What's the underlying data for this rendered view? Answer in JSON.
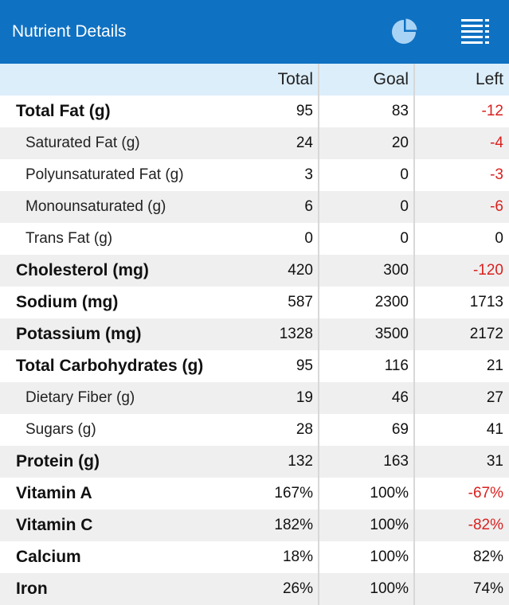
{
  "header": {
    "title": "Nutrient Details",
    "colors": {
      "bar": "#0f71c2",
      "icon": "#a9d3f5"
    },
    "icons": [
      "pie-chart-icon",
      "list-icon"
    ]
  },
  "columns": {
    "total": "Total",
    "goal": "Goal",
    "left": "Left"
  },
  "colors": {
    "negative": "#d9211f",
    "shade": "#efefef",
    "header_row": "#dceefa"
  },
  "rows": [
    {
      "name": "Total Fat (g)",
      "sub": false,
      "total": "95",
      "goal": "83",
      "left": "-12",
      "negative": true
    },
    {
      "name": "Saturated Fat (g)",
      "sub": true,
      "total": "24",
      "goal": "20",
      "left": "-4",
      "negative": true
    },
    {
      "name": "Polyunsaturated Fat (g)",
      "sub": true,
      "total": "3",
      "goal": "0",
      "left": "-3",
      "negative": true
    },
    {
      "name": "Monounsaturated (g)",
      "sub": true,
      "total": "6",
      "goal": "0",
      "left": "-6",
      "negative": true
    },
    {
      "name": "Trans Fat (g)",
      "sub": true,
      "total": "0",
      "goal": "0",
      "left": "0",
      "negative": false
    },
    {
      "name": "Cholesterol (mg)",
      "sub": false,
      "total": "420",
      "goal": "300",
      "left": "-120",
      "negative": true
    },
    {
      "name": "Sodium (mg)",
      "sub": false,
      "total": "587",
      "goal": "2300",
      "left": "1713",
      "negative": false
    },
    {
      "name": "Potassium (mg)",
      "sub": false,
      "total": "1328",
      "goal": "3500",
      "left": "2172",
      "negative": false
    },
    {
      "name": "Total Carbohydrates (g)",
      "sub": false,
      "total": "95",
      "goal": "116",
      "left": "21",
      "negative": false
    },
    {
      "name": "Dietary Fiber (g)",
      "sub": true,
      "total": "19",
      "goal": "46",
      "left": "27",
      "negative": false
    },
    {
      "name": "Sugars (g)",
      "sub": true,
      "total": "28",
      "goal": "69",
      "left": "41",
      "negative": false
    },
    {
      "name": "Protein (g)",
      "sub": false,
      "total": "132",
      "goal": "163",
      "left": "31",
      "negative": false
    },
    {
      "name": "Vitamin A",
      "sub": false,
      "total": "167%",
      "goal": "100%",
      "left": "-67%",
      "negative": true
    },
    {
      "name": "Vitamin C",
      "sub": false,
      "total": "182%",
      "goal": "100%",
      "left": "-82%",
      "negative": true
    },
    {
      "name": "Calcium",
      "sub": false,
      "total": "18%",
      "goal": "100%",
      "left": "82%",
      "negative": false
    },
    {
      "name": "Iron",
      "sub": false,
      "total": "26%",
      "goal": "100%",
      "left": "74%",
      "negative": false
    }
  ]
}
